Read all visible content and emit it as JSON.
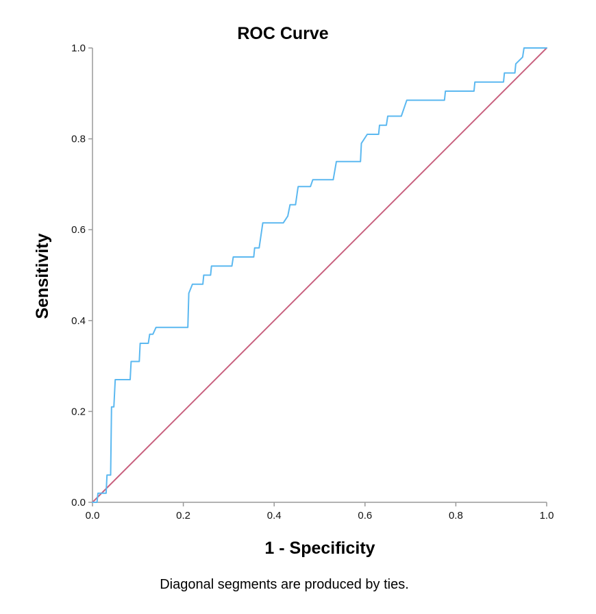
{
  "chart_data": {
    "type": "line",
    "title": "ROC Curve",
    "xlabel": "1 - Specificity",
    "ylabel": "Sensitivity",
    "xlim": [
      0,
      1
    ],
    "ylim": [
      0,
      1
    ],
    "xticks": [
      0.0,
      0.2,
      0.4,
      0.6,
      0.8,
      1.0
    ],
    "yticks": [
      0.0,
      0.2,
      0.4,
      0.6,
      0.8,
      1.0
    ],
    "xtick_labels": [
      "0.0",
      "0.2",
      "0.4",
      "0.6",
      "0.8",
      "1.0"
    ],
    "ytick_labels": [
      "0.0",
      "0.2",
      "0.4",
      "0.6",
      "0.8",
      "1.0"
    ],
    "grid": false,
    "series": [
      {
        "color": "#5bb8f0",
        "points": [
          [
            0.0,
            0.0
          ],
          [
            0.01,
            0.0
          ],
          [
            0.012,
            0.02
          ],
          [
            0.03,
            0.02
          ],
          [
            0.032,
            0.06
          ],
          [
            0.04,
            0.06
          ],
          [
            0.042,
            0.21
          ],
          [
            0.047,
            0.21
          ],
          [
            0.05,
            0.27
          ],
          [
            0.083,
            0.27
          ],
          [
            0.085,
            0.31
          ],
          [
            0.103,
            0.31
          ],
          [
            0.105,
            0.35
          ],
          [
            0.123,
            0.35
          ],
          [
            0.126,
            0.37
          ],
          [
            0.133,
            0.37
          ],
          [
            0.14,
            0.385
          ],
          [
            0.21,
            0.385
          ],
          [
            0.212,
            0.46
          ],
          [
            0.22,
            0.48
          ],
          [
            0.243,
            0.48
          ],
          [
            0.245,
            0.5
          ],
          [
            0.26,
            0.5
          ],
          [
            0.262,
            0.52
          ],
          [
            0.307,
            0.52
          ],
          [
            0.31,
            0.54
          ],
          [
            0.355,
            0.54
          ],
          [
            0.357,
            0.56
          ],
          [
            0.367,
            0.56
          ],
          [
            0.375,
            0.615
          ],
          [
            0.42,
            0.615
          ],
          [
            0.43,
            0.63
          ],
          [
            0.435,
            0.655
          ],
          [
            0.447,
            0.655
          ],
          [
            0.452,
            0.69
          ],
          [
            0.453,
            0.695
          ],
          [
            0.48,
            0.695
          ],
          [
            0.485,
            0.71
          ],
          [
            0.53,
            0.71
          ],
          [
            0.537,
            0.75
          ],
          [
            0.59,
            0.75
          ],
          [
            0.592,
            0.79
          ],
          [
            0.605,
            0.81
          ],
          [
            0.63,
            0.81
          ],
          [
            0.632,
            0.83
          ],
          [
            0.647,
            0.83
          ],
          [
            0.65,
            0.85
          ],
          [
            0.68,
            0.85
          ],
          [
            0.692,
            0.885
          ],
          [
            0.775,
            0.885
          ],
          [
            0.777,
            0.905
          ],
          [
            0.84,
            0.905
          ],
          [
            0.842,
            0.925
          ],
          [
            0.905,
            0.925
          ],
          [
            0.907,
            0.945
          ],
          [
            0.93,
            0.945
          ],
          [
            0.932,
            0.965
          ],
          [
            0.947,
            0.98
          ],
          [
            0.95,
            1.0
          ],
          [
            1.0,
            1.0
          ]
        ]
      },
      {
        "color": "#c8607e",
        "points": [
          [
            0.0,
            0.0
          ],
          [
            1.0,
            1.0
          ]
        ]
      }
    ]
  },
  "footnote": "Diagonal segments are produced by ties."
}
